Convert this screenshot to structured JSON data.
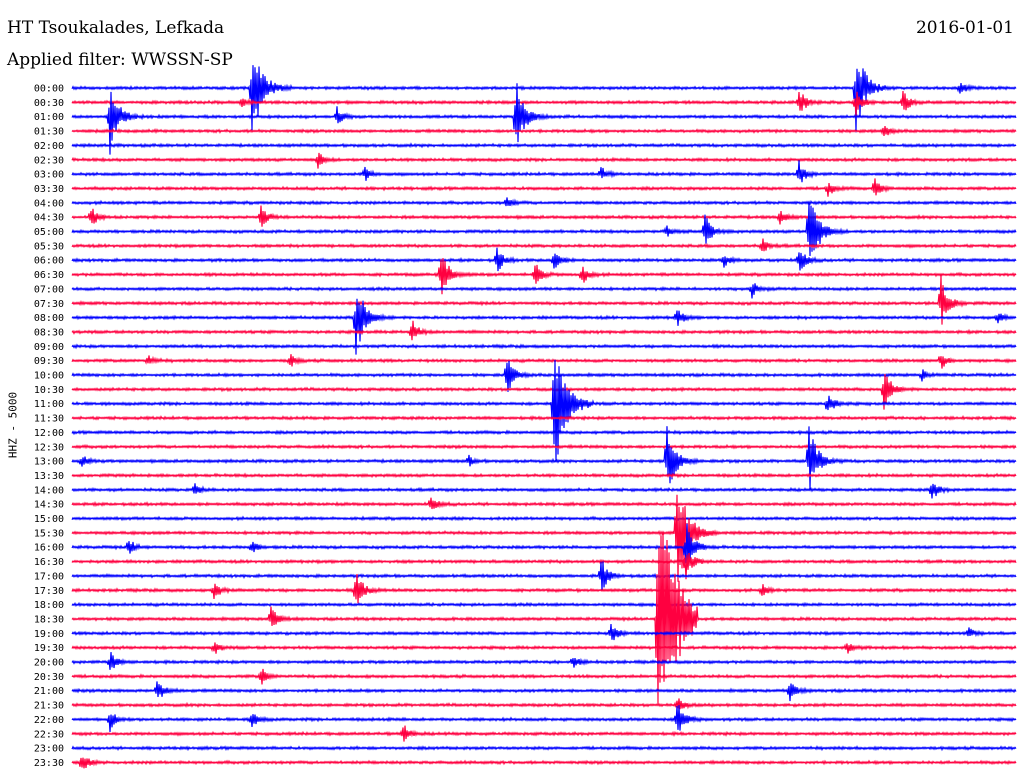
{
  "header": {
    "station": "HT Tsoukalades, Lefkada",
    "date": "2016-01-01",
    "filter": "Applied filter: WWSSN-SP"
  },
  "colors": {
    "trace_a": "#0000ff",
    "trace_b": "#ff0040"
  },
  "chart_data": {
    "type": "line",
    "ylabel": "HHZ - 5000",
    "rows": [
      "00:00",
      "00:30",
      "01:00",
      "01:30",
      "02:00",
      "02:30",
      "03:00",
      "03:30",
      "04:00",
      "04:30",
      "05:00",
      "05:30",
      "06:00",
      "06:30",
      "07:00",
      "07:30",
      "08:00",
      "08:30",
      "09:00",
      "09:30",
      "10:00",
      "10:30",
      "11:00",
      "11:30",
      "12:00",
      "12:30",
      "13:00",
      "13:30",
      "14:00",
      "14:30",
      "15:00",
      "15:30",
      "16:00",
      "16:30",
      "17:00",
      "17:30",
      "18:00",
      "18:30",
      "19:00",
      "19:30",
      "20:00",
      "20:30",
      "21:00",
      "21:30",
      "22:00",
      "22:30",
      "23:00",
      "23:30"
    ],
    "series_colors": [
      "blue",
      "red"
    ],
    "events": [
      [
        0,
        0.19,
        60
      ],
      [
        0,
        0.83,
        50
      ],
      [
        0,
        0.94,
        8
      ],
      [
        1,
        0.83,
        14
      ],
      [
        1,
        0.77,
        16
      ],
      [
        1,
        0.88,
        14
      ],
      [
        1,
        0.18,
        6
      ],
      [
        2,
        0.04,
        40
      ],
      [
        2,
        0.28,
        12
      ],
      [
        2,
        0.47,
        40
      ],
      [
        3,
        0.86,
        8
      ],
      [
        5,
        0.26,
        10
      ],
      [
        6,
        0.31,
        8
      ],
      [
        6,
        0.56,
        8
      ],
      [
        6,
        0.77,
        14
      ],
      [
        7,
        0.8,
        10
      ],
      [
        7,
        0.85,
        12
      ],
      [
        8,
        0.46,
        8
      ],
      [
        9,
        0.02,
        12
      ],
      [
        9,
        0.2,
        14
      ],
      [
        9,
        0.75,
        8
      ],
      [
        10,
        0.63,
        6
      ],
      [
        10,
        0.78,
        50
      ],
      [
        10,
        0.67,
        20
      ],
      [
        11,
        0.73,
        10
      ],
      [
        12,
        0.45,
        14
      ],
      [
        12,
        0.51,
        14
      ],
      [
        12,
        0.69,
        8
      ],
      [
        12,
        0.77,
        16
      ],
      [
        13,
        0.39,
        30
      ],
      [
        13,
        0.49,
        14
      ],
      [
        13,
        0.54,
        12
      ],
      [
        14,
        0.72,
        10
      ],
      [
        15,
        0.92,
        30
      ],
      [
        16,
        0.3,
        45
      ],
      [
        16,
        0.64,
        12
      ],
      [
        16,
        0.98,
        8
      ],
      [
        17,
        0.36,
        14
      ],
      [
        19,
        0.08,
        6
      ],
      [
        19,
        0.23,
        8
      ],
      [
        19,
        0.92,
        10
      ],
      [
        20,
        0.46,
        24
      ],
      [
        20,
        0.9,
        6
      ],
      [
        21,
        0.86,
        24
      ],
      [
        22,
        0.51,
        80
      ],
      [
        22,
        0.8,
        14
      ],
      [
        26,
        0.01,
        8
      ],
      [
        26,
        0.63,
        40
      ],
      [
        26,
        0.78,
        40
      ],
      [
        26,
        0.42,
        6
      ],
      [
        28,
        0.13,
        8
      ],
      [
        28,
        0.91,
        14
      ],
      [
        29,
        0.38,
        10
      ],
      [
        31,
        0.64,
        70
      ],
      [
        32,
        0.06,
        10
      ],
      [
        32,
        0.19,
        8
      ],
      [
        32,
        0.65,
        30
      ],
      [
        33,
        0.65,
        20
      ],
      [
        34,
        0.56,
        20
      ],
      [
        35,
        0.15,
        12
      ],
      [
        35,
        0.3,
        24
      ],
      [
        35,
        0.73,
        8
      ],
      [
        37,
        0.21,
        16
      ],
      [
        37,
        0.62,
        150
      ],
      [
        38,
        0.57,
        14
      ],
      [
        38,
        0.95,
        6
      ],
      [
        39,
        0.15,
        8
      ],
      [
        39,
        0.82,
        8
      ],
      [
        40,
        0.04,
        12
      ],
      [
        40,
        0.53,
        8
      ],
      [
        41,
        0.2,
        10
      ],
      [
        42,
        0.09,
        14
      ],
      [
        42,
        0.76,
        12
      ],
      [
        43,
        0.64,
        10
      ],
      [
        44,
        0.04,
        12
      ],
      [
        44,
        0.19,
        10
      ],
      [
        44,
        0.64,
        24
      ],
      [
        45,
        0.35,
        12
      ],
      [
        47,
        0.01,
        12
      ]
    ]
  }
}
